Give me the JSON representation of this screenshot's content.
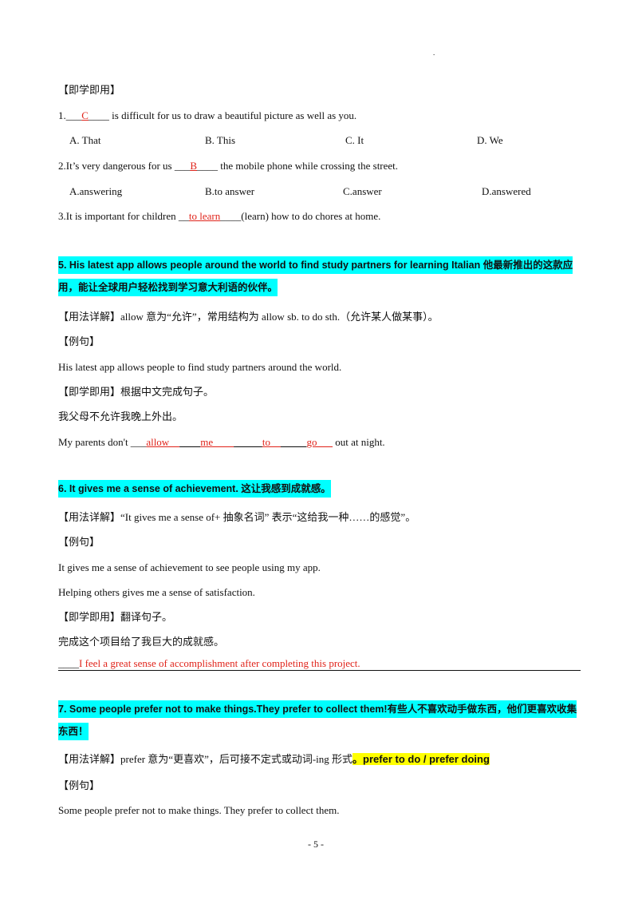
{
  "header_mark": ".",
  "practice": {
    "heading": "【即学即用】",
    "questions": [
      {
        "prefix": "1.___",
        "answer": "C",
        "suffix": "____ is difficult for us to draw a beautiful picture as well as you.",
        "options": [
          "A. That",
          "B. This",
          "C. It",
          "D. We"
        ]
      },
      {
        "prefix": "2.It’s very dangerous for us ___",
        "answer": "B",
        "suffix": "____ the mobile phone while crossing the street.",
        "options": [
          "A.answering",
          "B.to answer",
          "C.answer",
          "D.answered"
        ]
      },
      {
        "prefix": "3.It is important for children __",
        "answer": "to learn",
        "suffix": "____(learn) how to do chores at home."
      }
    ]
  },
  "items": [
    {
      "title": "5.   His latest app allows people around the world to find study partners for learning Italian 他最新推出的这款应用，能让全球用户轻松找到学习意大利语的伙伴。",
      "usage_label": "【用法详解】",
      "usage": "allow  意为“允许”，常用结构为  allow sb. to do sth.（允许某人做某事）。",
      "example_label": "【例句】",
      "examples": [
        "His latest app allows people to find study partners around the world."
      ],
      "practice_label": "【即学即用】",
      "practice_instruction": "根据中文完成句子。",
      "prompt": "我父母不允许我晚上外出。",
      "answer_parts": [
        "My parents don't ___",
        "allow__",
        "____",
        "me____",
        " _____",
        "to__",
        "_____",
        "go___",
        " out at night."
      ]
    },
    {
      "title": "6.  It gives me a sense of achievement.  这让我感到成就感。",
      "usage_label": "【用法详解】",
      "usage": "“It gives me a sense of+  抽象名词”  表示“这给我一种……的感觉”。",
      "example_label": "【例句】",
      "examples": [
        "It gives me a sense of achievement to see people using my app.",
        "Helping others gives me a sense of satisfaction."
      ],
      "practice_label": "【即学即用】",
      "practice_instruction": "翻译句子。",
      "prompt": "完成这个项目给了我巨大的成就感。",
      "answer_parts": [
        "____",
        "I feel a great sense of accomplishment after completing this project."
      ]
    },
    {
      "title": "7. Some people prefer not to make things.They prefer to collect them!有些人不喜欢动手做东西，他们更喜欢收集东西！",
      "usage_label": "【用法详解】",
      "usage": "prefer  意为“更喜欢”，后可接不定式或动词-ing 形式",
      "usage_highlight": "。prefer to do / prefer doing",
      "example_label": "【例句】",
      "examples": [
        "Some people prefer not to make things. They prefer to collect them."
      ]
    }
  ],
  "page_number": "- 5 -"
}
